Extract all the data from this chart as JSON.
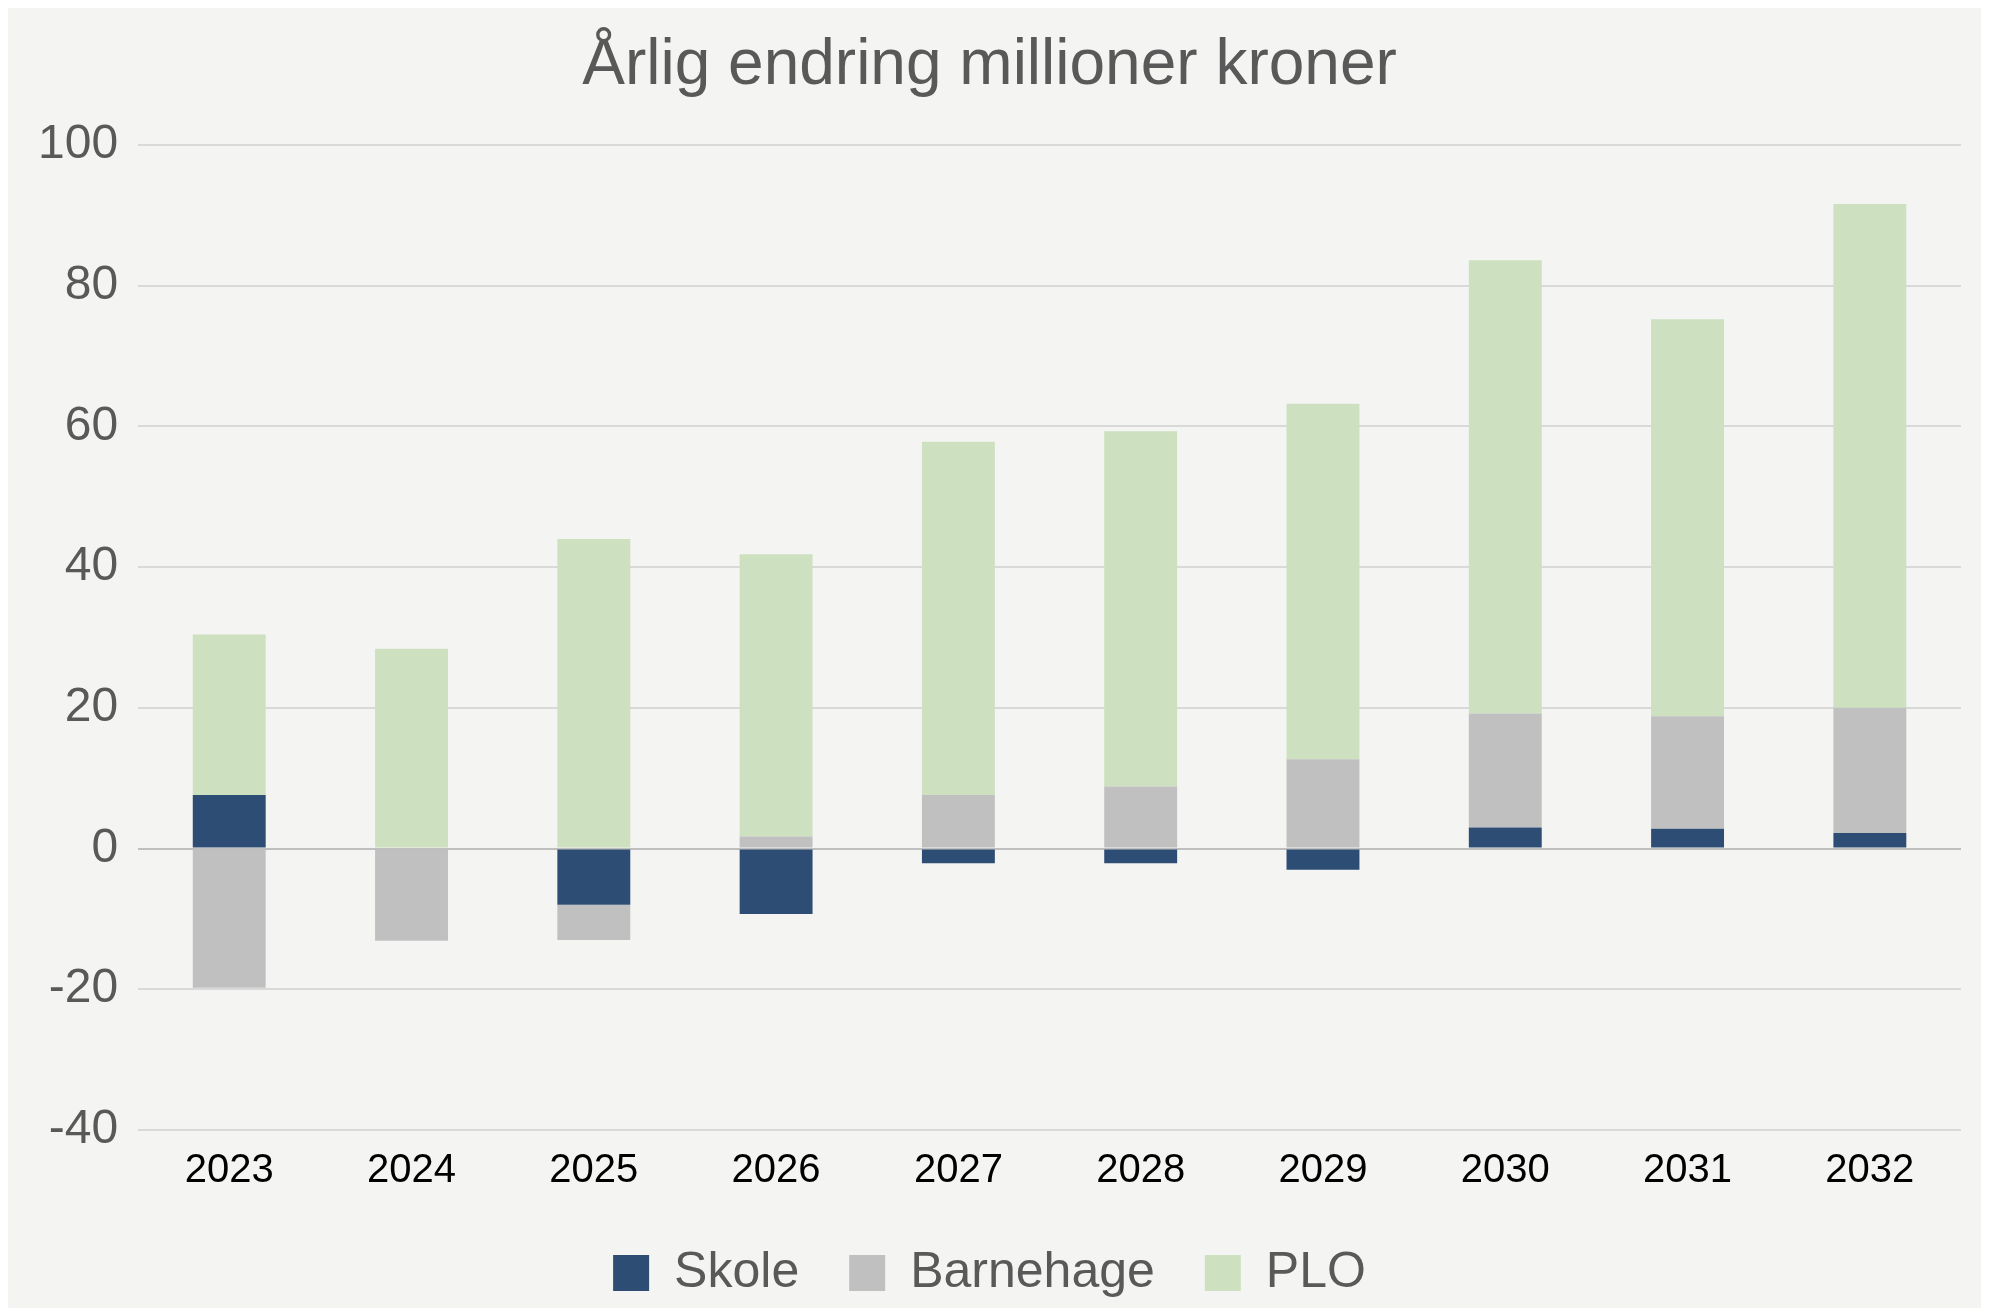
{
  "chart_data": {
    "type": "bar",
    "title": "Årlig endring millioner kroner",
    "stacked": true,
    "categories": [
      "2023",
      "2024",
      "2025",
      "2026",
      "2027",
      "2028",
      "2029",
      "2030",
      "2031",
      "2032"
    ],
    "series": [
      {
        "name": "Skole",
        "color": "#2e4d74",
        "values": [
          7.6,
          0,
          -8,
          -9.3,
          -2.1,
          -2.1,
          -3,
          3,
          2.8,
          2.2
        ]
      },
      {
        "name": "Barnehage",
        "color": "#c0c0c0",
        "values": [
          -19.8,
          -13.1,
          -5,
          1.7,
          7.6,
          8.8,
          12.7,
          16.2,
          16,
          17.8
        ]
      },
      {
        "name": "PLO",
        "color": "#cde0bf",
        "values": [
          22.8,
          28.4,
          44,
          40.1,
          50.2,
          50.5,
          50.5,
          64.4,
          56.4,
          71.6
        ]
      }
    ],
    "ylim": [
      -40,
      100
    ],
    "yticks": [
      -40,
      -20,
      0,
      20,
      40,
      60,
      80,
      100
    ],
    "grid": "y",
    "legend": "bottom"
  }
}
